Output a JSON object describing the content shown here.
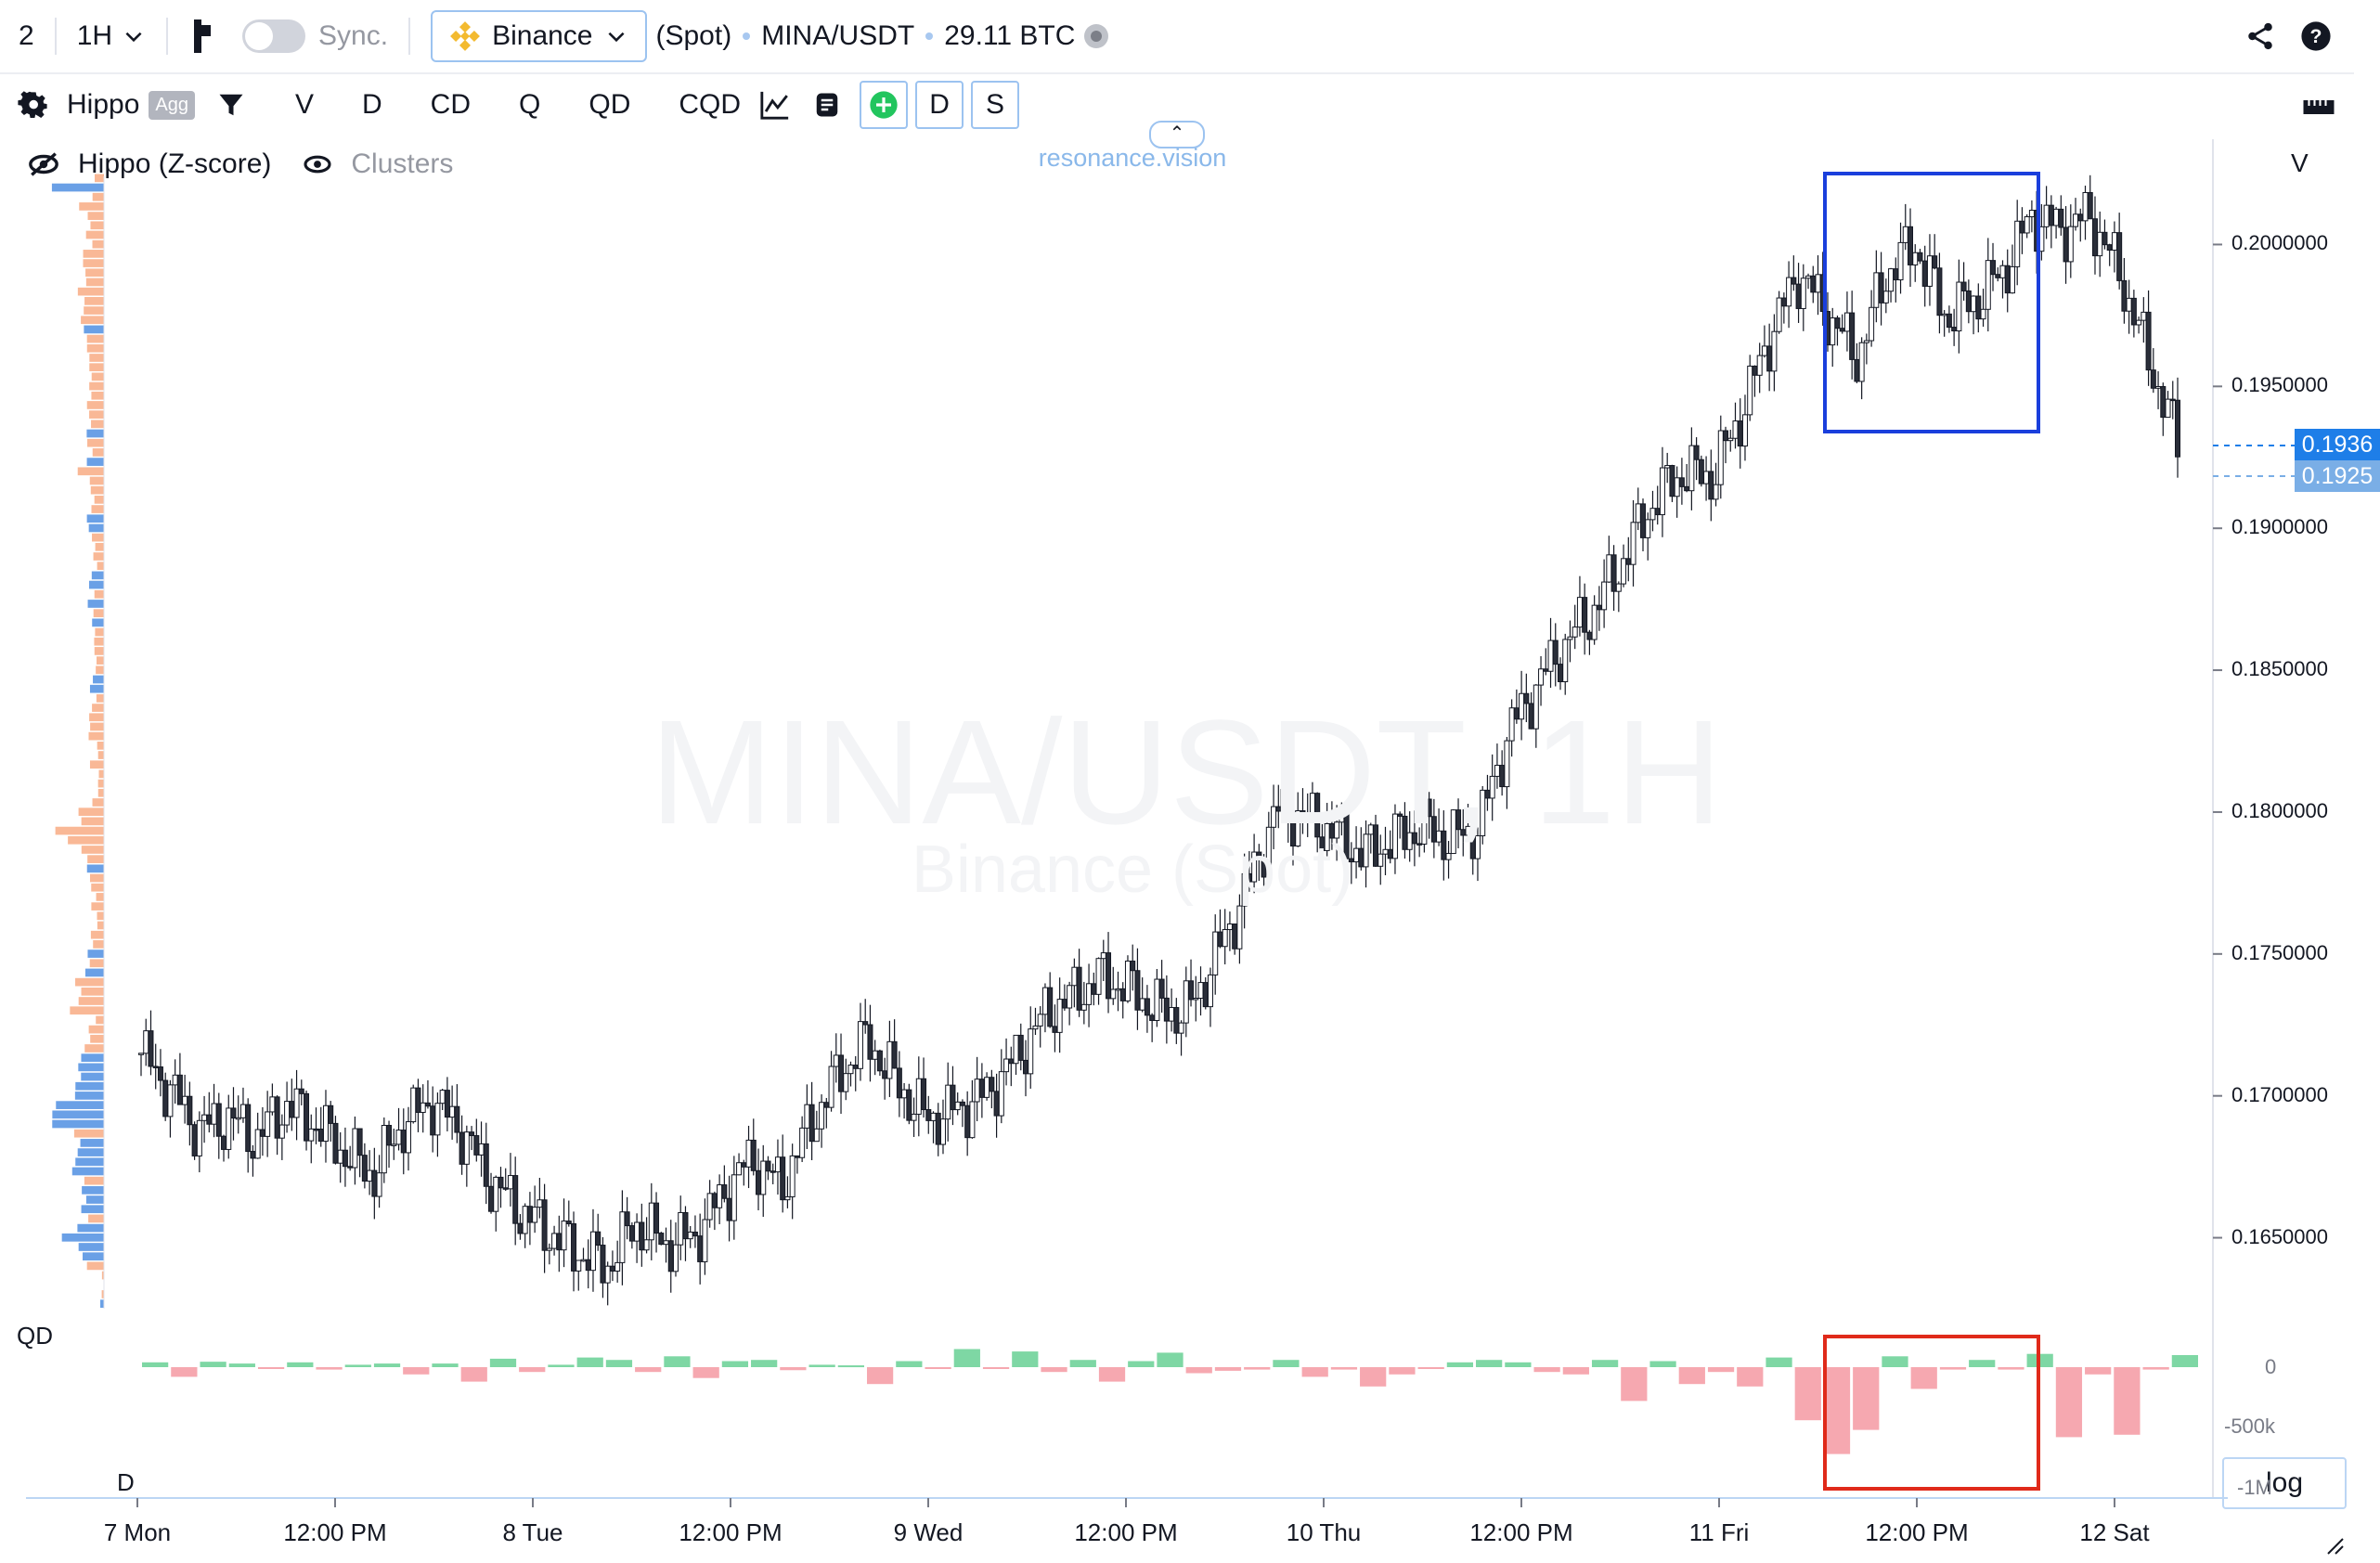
{
  "topbar": {
    "layout_count": "2",
    "interval": "1H",
    "sync_label": "Sync.",
    "exchange": "Binance",
    "market_type": "(Spot)",
    "pair": "MINA/USDT",
    "volume": "29.11 BTC"
  },
  "toolbar": {
    "indicator": "Hippo",
    "agg_badge": "Agg",
    "buttons": [
      "V",
      "D",
      "CD",
      "Q",
      "QD",
      "CQD"
    ],
    "box_buttons": [
      "D",
      "S"
    ]
  },
  "legend": {
    "hippo": "Hippo (Z-score)",
    "clusters": "Clusters"
  },
  "watermark": {
    "line1": "MINA/USDT, 1H",
    "line2": "Binance (Spot)"
  },
  "brand": "resonance.vision",
  "axis_right_label": "V",
  "price_tags": {
    "last": "0.1936",
    "second": "0.1925"
  },
  "subpane": {
    "label": "QD",
    "label_bottom": "D",
    "ticks": [
      "0",
      "-500k",
      "-1M"
    ],
    "log_button": "log"
  },
  "colors": {
    "highlight_box_top": "#1a3fdc",
    "highlight_box_bottom": "#e02a1a",
    "bullish": "#7ed7a4",
    "bearish": "#f6a8b0",
    "volume_profile_sell": "#f9b896",
    "volume_profile_buy": "#6aa0e6",
    "price_tag": "#1e7ee8"
  },
  "chart_data": {
    "type": "candlestick",
    "title": "MINA/USDT, 1H",
    "y_ticks": [
      "0.2000000",
      "0.1950000",
      "0.1900000",
      "0.1850000",
      "0.1800000",
      "0.1750000",
      "0.1700000",
      "0.1650000"
    ],
    "x_ticks": [
      "7 Mon",
      "12:00 PM",
      "8 Tue",
      "12:00 PM",
      "9 Wed",
      "12:00 PM",
      "10 Thu",
      "12:00 PM",
      "11 Fri",
      "12:00 PM",
      "12 Sat"
    ],
    "ylim": [
      0.1625,
      0.2025
    ],
    "price_path": [
      [
        0,
        0.1715
      ],
      [
        1,
        0.1702
      ],
      [
        2,
        0.1688
      ],
      [
        3,
        0.1692
      ],
      [
        4,
        0.1685
      ],
      [
        5,
        0.1697
      ],
      [
        6,
        0.169
      ],
      [
        7,
        0.168
      ],
      [
        8,
        0.1672
      ],
      [
        9,
        0.169
      ],
      [
        10,
        0.1698
      ],
      [
        11,
        0.1688
      ],
      [
        12,
        0.167
      ],
      [
        13,
        0.166
      ],
      [
        14,
        0.1652
      ],
      [
        15,
        0.1645
      ],
      [
        16,
        0.164
      ],
      [
        17,
        0.1655
      ],
      [
        18,
        0.1648
      ],
      [
        19,
        0.165
      ],
      [
        20,
        0.1665
      ],
      [
        21,
        0.1678
      ],
      [
        22,
        0.1668
      ],
      [
        23,
        0.169
      ],
      [
        24,
        0.1708
      ],
      [
        25,
        0.172
      ],
      [
        26,
        0.1704
      ],
      [
        27,
        0.1692
      ],
      [
        28,
        0.1695
      ],
      [
        29,
        0.17
      ],
      [
        30,
        0.1712
      ],
      [
        31,
        0.1728
      ],
      [
        32,
        0.1735
      ],
      [
        33,
        0.1742
      ],
      [
        34,
        0.1738
      ],
      [
        35,
        0.173
      ],
      [
        36,
        0.173
      ],
      [
        37,
        0.175
      ],
      [
        38,
        0.1773
      ],
      [
        39,
        0.18
      ],
      [
        40,
        0.1798
      ],
      [
        41,
        0.1793
      ],
      [
        42,
        0.1785
      ],
      [
        43,
        0.179
      ],
      [
        44,
        0.1795
      ],
      [
        45,
        0.179
      ],
      [
        46,
        0.1795
      ],
      [
        47,
        0.1828
      ],
      [
        48,
        0.1845
      ],
      [
        49,
        0.186
      ],
      [
        50,
        0.1872
      ],
      [
        51,
        0.189
      ],
      [
        52,
        0.191
      ],
      [
        53,
        0.192
      ],
      [
        54,
        0.1918
      ],
      [
        55,
        0.194
      ],
      [
        56,
        0.1968
      ],
      [
        57,
        0.199
      ],
      [
        58,
        0.1975
      ],
      [
        59,
        0.196
      ],
      [
        60,
        0.199
      ],
      [
        61,
        0.2
      ],
      [
        62,
        0.1975
      ],
      [
        63,
        0.198
      ],
      [
        64,
        0.199
      ],
      [
        65,
        0.201
      ],
      [
        66,
        0.2005
      ],
      [
        67,
        0.201
      ],
      [
        68,
        0.199
      ],
      [
        69,
        0.196
      ],
      [
        70,
        0.193
      ]
    ],
    "qd_values": [
      40,
      -80,
      45,
      30,
      -10,
      40,
      -20,
      20,
      30,
      -60,
      30,
      -120,
      70,
      -40,
      20,
      80,
      60,
      -40,
      90,
      -90,
      50,
      60,
      -25,
      20,
      15,
      -140,
      50,
      -15,
      150,
      -5,
      130,
      -40,
      60,
      -120,
      50,
      120,
      -50,
      -30,
      -20,
      60,
      -80,
      -20,
      -160,
      -60,
      -10,
      40,
      60,
      40,
      -40,
      -60,
      60,
      -280,
      50,
      -140,
      -40,
      -160,
      80,
      -440,
      -720,
      -520,
      90,
      -180,
      -20,
      60,
      -20,
      110,
      -580,
      -60,
      -560,
      -20,
      100
    ]
  }
}
